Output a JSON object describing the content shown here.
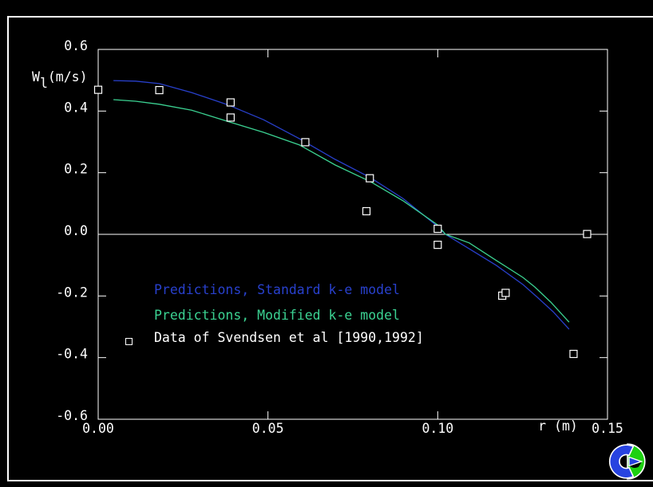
{
  "window": {
    "background": "#000000",
    "frame_color": "#ffffff"
  },
  "chart_data": {
    "type": "line",
    "title": "",
    "xlabel": "r (m)",
    "ylabel_base": "W",
    "ylabel_sub": "l",
    "ylabel_units": "(m/s)",
    "xlim": [
      0,
      0.15
    ],
    "ylim": [
      -0.6,
      0.6
    ],
    "xtick_values": [
      0.0,
      0.05,
      0.1,
      0.15
    ],
    "xtick_labels": [
      "0.00",
      "0.05",
      "0.10",
      "0.15"
    ],
    "xtick_marks": [
      0.05,
      0.1
    ],
    "ytick_values": [
      0.6,
      0.4,
      0.2,
      0.0,
      -0.2,
      -0.4,
      -0.6
    ],
    "ytick_labels": [
      "0.6",
      "0.4",
      "0.2",
      "0.0",
      "-0.2",
      "-0.4",
      "-0.6"
    ],
    "ytick_marks": [
      0.4,
      0.2,
      -0.2,
      -0.4
    ],
    "zero_line": 0.0,
    "grid": false,
    "legend_position": "inside-lower-left",
    "series": [
      {
        "name": "Predictions, Standard k-e model",
        "kind": "line",
        "color": "#2840cc",
        "points": [
          [
            0.0045,
            0.499
          ],
          [
            0.011,
            0.497
          ],
          [
            0.018,
            0.489
          ],
          [
            0.0275,
            0.46
          ],
          [
            0.038,
            0.421
          ],
          [
            0.0487,
            0.372
          ],
          [
            0.0593,
            0.31
          ],
          [
            0.0698,
            0.243
          ],
          [
            0.0802,
            0.184
          ],
          [
            0.0898,
            0.116
          ],
          [
            0.0999,
            0.026
          ],
          [
            0.1023,
            0.0
          ],
          [
            0.1093,
            -0.047
          ],
          [
            0.1173,
            -0.101
          ],
          [
            0.1251,
            -0.163
          ],
          [
            0.1293,
            -0.204
          ],
          [
            0.134,
            -0.251
          ],
          [
            0.1387,
            -0.308
          ]
        ]
      },
      {
        "name": "Predictions, Modified k-e model",
        "kind": "line",
        "color": "#3bd292",
        "points": [
          [
            0.0045,
            0.437
          ],
          [
            0.011,
            0.432
          ],
          [
            0.018,
            0.422
          ],
          [
            0.0275,
            0.403
          ],
          [
            0.038,
            0.367
          ],
          [
            0.0487,
            0.331
          ],
          [
            0.0593,
            0.29
          ],
          [
            0.0698,
            0.225
          ],
          [
            0.0802,
            0.171
          ],
          [
            0.0898,
            0.109
          ],
          [
            0.0999,
            0.031
          ],
          [
            0.1023,
            0.0
          ],
          [
            0.1093,
            -0.028
          ],
          [
            0.1173,
            -0.085
          ],
          [
            0.1251,
            -0.14
          ],
          [
            0.1286,
            -0.171
          ],
          [
            0.1333,
            -0.22
          ],
          [
            0.1387,
            -0.285
          ]
        ]
      },
      {
        "name": "Data of Svendsen et al [1990,1992]",
        "kind": "scatter",
        "marker": "open-square",
        "color": "#ffffff",
        "points": [
          [
            0.0,
            0.469
          ],
          [
            0.018,
            0.468
          ],
          [
            0.039,
            0.428
          ],
          [
            0.039,
            0.379
          ],
          [
            0.061,
            0.299
          ],
          [
            0.08,
            0.182
          ],
          [
            0.079,
            0.075
          ],
          [
            0.1,
            0.018
          ],
          [
            0.1,
            -0.034
          ],
          [
            0.119,
            -0.199
          ],
          [
            0.12,
            -0.19
          ],
          [
            0.144,
            0.001
          ],
          [
            0.14,
            -0.388
          ]
        ]
      }
    ]
  },
  "logo": {
    "name": "app-logo",
    "colors": {
      "blue": "#2743e0",
      "green": "#1dd112",
      "outline": "#ffffff"
    }
  }
}
